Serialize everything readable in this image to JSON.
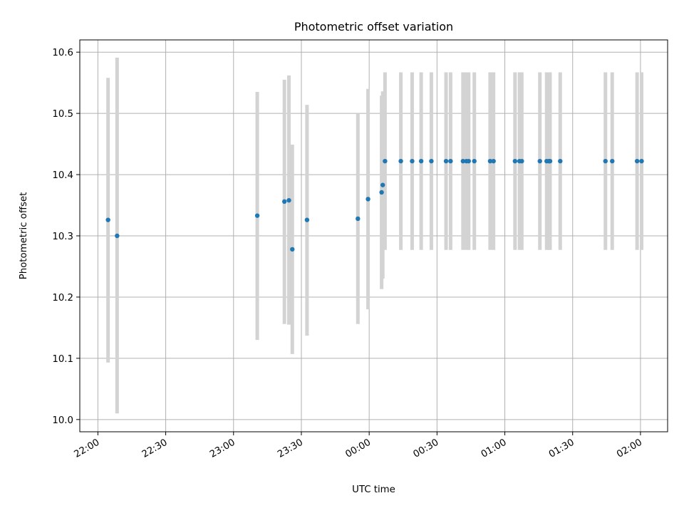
{
  "chart_data": {
    "type": "scatter",
    "title": "Photometric offset variation",
    "xlabel": "UTC time",
    "ylabel": "Photometric offset",
    "xlim": [
      "21:52",
      "02:12"
    ],
    "ylim": [
      9.98,
      10.62
    ],
    "xticks": [
      "22:00",
      "22:30",
      "23:00",
      "23:30",
      "00:00",
      "00:30",
      "01:00",
      "01:30",
      "02:00"
    ],
    "yticks": [
      "10.0",
      "10.1",
      "10.2",
      "10.3",
      "10.4",
      "10.5",
      "10.6"
    ],
    "grid": true,
    "colors": {
      "points": "#1f77b4",
      "errorbars": "#d3d3d3"
    },
    "series": [
      {
        "points": [
          {
            "x": "22:04:30",
            "y": 10.326,
            "ylow": 10.093,
            "yhigh": 10.558
          },
          {
            "x": "22:08:30",
            "y": 10.3,
            "ylow": 10.01,
            "yhigh": 10.591
          },
          {
            "x": "23:10:30",
            "y": 10.333,
            "ylow": 10.13,
            "yhigh": 10.535
          },
          {
            "x": "23:22:30",
            "y": 10.356,
            "ylow": 10.156,
            "yhigh": 10.555
          },
          {
            "x": "23:24:30",
            "y": 10.358,
            "ylow": 10.155,
            "yhigh": 10.562
          },
          {
            "x": "23:26:00",
            "y": 10.278,
            "ylow": 10.107,
            "yhigh": 10.449
          },
          {
            "x": "23:32:30",
            "y": 10.326,
            "ylow": 10.137,
            "yhigh": 10.514
          },
          {
            "x": "23:55:00",
            "y": 10.328,
            "ylow": 10.156,
            "yhigh": 10.5
          },
          {
            "x": "23:59:30",
            "y": 10.36,
            "ylow": 10.18,
            "yhigh": 10.54
          },
          {
            "x": "00:05:30",
            "y": 10.371,
            "ylow": 10.213,
            "yhigh": 10.529
          },
          {
            "x": "00:06:00",
            "y": 10.383,
            "ylow": 10.23,
            "yhigh": 10.536
          },
          {
            "x": "00:07:00",
            "y": 10.422,
            "ylow": 10.277,
            "yhigh": 10.567
          },
          {
            "x": "00:14:00",
            "y": 10.422,
            "ylow": 10.277,
            "yhigh": 10.567
          },
          {
            "x": "00:19:00",
            "y": 10.422,
            "ylow": 10.277,
            "yhigh": 10.567
          },
          {
            "x": "00:23:00",
            "y": 10.422,
            "ylow": 10.277,
            "yhigh": 10.567
          },
          {
            "x": "00:27:30",
            "y": 10.422,
            "ylow": 10.277,
            "yhigh": 10.567
          },
          {
            "x": "00:34:00",
            "y": 10.422,
            "ylow": 10.277,
            "yhigh": 10.567
          },
          {
            "x": "00:36:00",
            "y": 10.422,
            "ylow": 10.277,
            "yhigh": 10.567
          },
          {
            "x": "00:41:30",
            "y": 10.422,
            "ylow": 10.277,
            "yhigh": 10.567
          },
          {
            "x": "00:43:00",
            "y": 10.422,
            "ylow": 10.277,
            "yhigh": 10.567
          },
          {
            "x": "00:44:00",
            "y": 10.422,
            "ylow": 10.277,
            "yhigh": 10.567
          },
          {
            "x": "00:46:30",
            "y": 10.422,
            "ylow": 10.277,
            "yhigh": 10.567
          },
          {
            "x": "00:53:30",
            "y": 10.422,
            "ylow": 10.277,
            "yhigh": 10.567
          },
          {
            "x": "00:55:00",
            "y": 10.422,
            "ylow": 10.277,
            "yhigh": 10.567
          },
          {
            "x": "01:04:30",
            "y": 10.422,
            "ylow": 10.277,
            "yhigh": 10.567
          },
          {
            "x": "01:06:30",
            "y": 10.422,
            "ylow": 10.277,
            "yhigh": 10.567
          },
          {
            "x": "01:07:30",
            "y": 10.422,
            "ylow": 10.277,
            "yhigh": 10.567
          },
          {
            "x": "01:15:30",
            "y": 10.422,
            "ylow": 10.277,
            "yhigh": 10.567
          },
          {
            "x": "01:18:30",
            "y": 10.422,
            "ylow": 10.277,
            "yhigh": 10.567
          },
          {
            "x": "01:19:30",
            "y": 10.422,
            "ylow": 10.277,
            "yhigh": 10.567
          },
          {
            "x": "01:20:00",
            "y": 10.422,
            "ylow": 10.277,
            "yhigh": 10.567
          },
          {
            "x": "01:24:30",
            "y": 10.422,
            "ylow": 10.277,
            "yhigh": 10.567
          },
          {
            "x": "01:44:30",
            "y": 10.422,
            "ylow": 10.277,
            "yhigh": 10.567
          },
          {
            "x": "01:47:30",
            "y": 10.422,
            "ylow": 10.277,
            "yhigh": 10.567
          },
          {
            "x": "01:58:30",
            "y": 10.422,
            "ylow": 10.277,
            "yhigh": 10.567
          },
          {
            "x": "02:00:30",
            "y": 10.422,
            "ylow": 10.277,
            "yhigh": 10.567
          }
        ]
      }
    ]
  }
}
